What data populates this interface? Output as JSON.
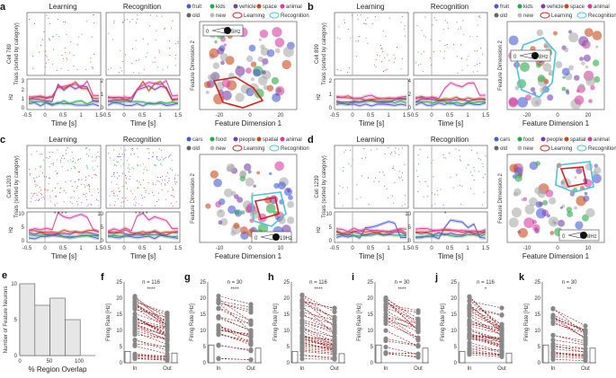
{
  "panels": {
    "a": {
      "letter": "a",
      "cell": "Cell 789",
      "legend": [
        "fruit",
        "kids",
        "vehicle",
        "space",
        "animal"
      ],
      "rate": "5Hz"
    },
    "b": {
      "letter": "b",
      "cell": "Cell 899",
      "legend": [
        "fruit",
        "kids",
        "vehicle",
        "space",
        "animal"
      ],
      "rate": "8Hz"
    },
    "c": {
      "letter": "c",
      "cell": "Cell 1203",
      "legend": [
        "cars",
        "food",
        "people",
        "spatial",
        "animal"
      ],
      "rate": "19Hz"
    },
    "d": {
      "letter": "d",
      "cell": "Cell 1239",
      "legend": [
        "cars",
        "food",
        "people",
        "spatial",
        "animal"
      ],
      "rate": "8Hz"
    }
  },
  "labels": {
    "learning": "Learning",
    "recognition": "Recognition",
    "old": "old",
    "new": "new",
    "trials": "Trials (sorted by category)",
    "hz": "Hz",
    "time": "Time [s]",
    "fd1": "Feature Dimension 1",
    "fd2": "Feature Dimension 2",
    "zero": "0",
    "sig_a": "* * * *",
    "sig_c1": "* * * *",
    "sig_c2": "* * * *",
    "sig_d": "*"
  },
  "category_colors": [
    "#4a5bd4",
    "#2aa84a",
    "#7a3fa8",
    "#c94a1e",
    "#d63fa0"
  ],
  "ticks": {
    "time": [
      "-0.5",
      "0",
      "0.5",
      "1",
      "1.5"
    ],
    "hz_a_l": [
      "0",
      "1",
      "2",
      "3"
    ],
    "hz_a_r": [
      "0",
      "1",
      "2"
    ],
    "hz_b_l": [
      "0",
      "1",
      "2"
    ],
    "hz_b_r": [
      "0",
      "2",
      "4"
    ],
    "hz_c": [
      "0",
      "5",
      "10"
    ],
    "hz_d": [
      "0",
      "5",
      "10"
    ],
    "fd1_a": [
      "-20",
      "0",
      "20"
    ],
    "fd1_b": [
      "-20",
      "0",
      "20"
    ],
    "fd1_c": [
      "-10",
      "0",
      "10"
    ],
    "fd1_d": [
      "-10",
      "0",
      "10"
    ]
  },
  "panel_e": {
    "letter": "e",
    "ylabel": "Number of Feature Neurons",
    "xlabel": "% Region Overlap",
    "yticks": [
      "0",
      "5",
      "10"
    ],
    "xticks": [
      "0",
      "50",
      "100"
    ]
  },
  "chart_data": [
    {
      "type": "bar",
      "panel": "e",
      "title": "",
      "xlabel": "% Region Overlap",
      "ylabel": "Number of Feature Neurons",
      "categories": [
        "0-25",
        "25-50",
        "50-75",
        "75-100",
        "100-125"
      ],
      "values": [
        10,
        7,
        8,
        5,
        0
      ],
      "ylim": [
        0,
        10
      ]
    },
    {
      "type": "bar",
      "panel": "f",
      "n": "n = 116",
      "sig": "****",
      "categories": [
        "In",
        "Out"
      ],
      "values": [
        3.5,
        3.0
      ],
      "ylabel": "Firing Rate [Hz]",
      "ylim": [
        0,
        25
      ]
    },
    {
      "type": "bar",
      "panel": "g",
      "n": "n = 30",
      "sig": "****",
      "categories": [
        "In",
        "Out"
      ],
      "values": [
        5.5,
        4.5
      ],
      "ylabel": "Firing Rate [Hz]",
      "ylim": [
        0,
        25
      ]
    },
    {
      "type": "bar",
      "panel": "h",
      "n": "n = 116",
      "sig": "****",
      "categories": [
        "In",
        "Out"
      ],
      "values": [
        3.5,
        2.8
      ],
      "ylabel": "Firing Rate [Hz]",
      "ylim": [
        0,
        25
      ]
    },
    {
      "type": "bar",
      "panel": "i",
      "n": "n = 30",
      "sig": "****",
      "categories": [
        "In",
        "Out"
      ],
      "values": [
        5.5,
        4.5
      ],
      "ylabel": "Firing Rate [Hz]",
      "ylim": [
        0,
        25
      ]
    },
    {
      "type": "bar",
      "panel": "j",
      "n": "n = 116",
      "sig": "*",
      "categories": [
        "In",
        "Out"
      ],
      "values": [
        3.5,
        3.0
      ],
      "ylabel": "Firing Rate [Hz]",
      "ylim": [
        0,
        25
      ]
    },
    {
      "type": "bar",
      "panel": "k",
      "n": "n = 30",
      "sig": "**",
      "categories": [
        "In",
        "Out"
      ],
      "values": [
        5.5,
        4.5
      ],
      "ylabel": "Firing Rate [Hz]",
      "ylim": [
        0,
        25
      ]
    }
  ],
  "bottom_yticks": [
    "0",
    "5",
    "10",
    "15",
    "20",
    "25"
  ]
}
